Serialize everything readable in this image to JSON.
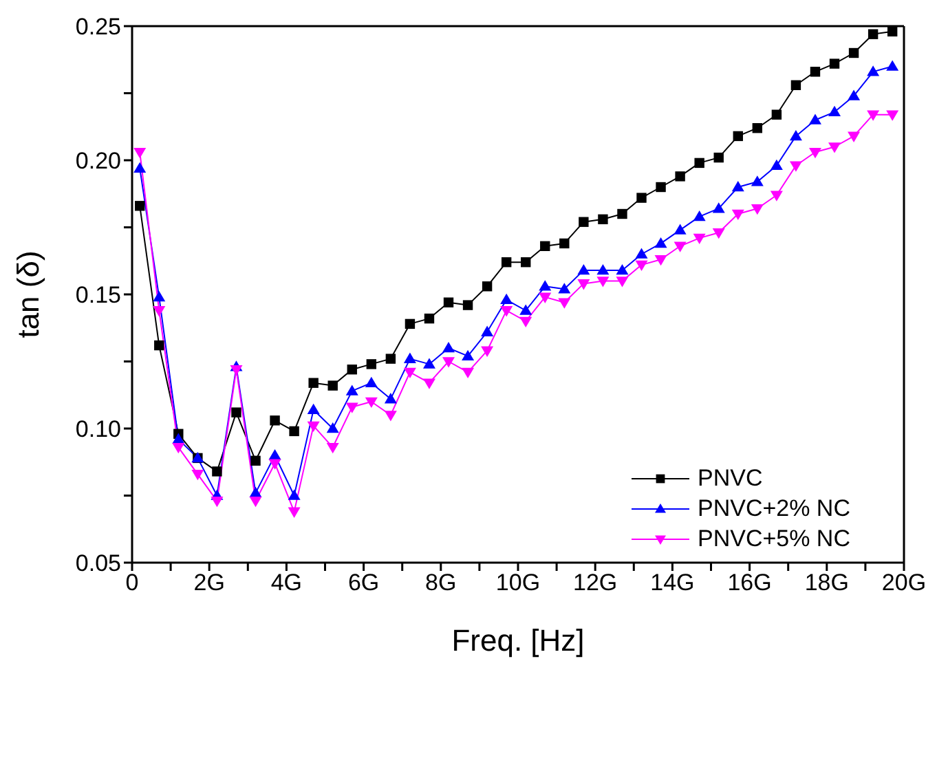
{
  "chart_data": {
    "type": "line",
    "xlabel": "Freq. [Hz]",
    "ylabel": "tan (δ)",
    "x": [
      0.2,
      0.7,
      1.2,
      1.7,
      2.2,
      2.7,
      3.2,
      3.7,
      4.2,
      4.7,
      5.2,
      5.7,
      6.2,
      6.7,
      7.2,
      7.7,
      8.2,
      8.7,
      9.2,
      9.7,
      10.2,
      10.7,
      11.2,
      11.7,
      12.2,
      12.7,
      13.2,
      13.7,
      14.2,
      14.7,
      15.2,
      15.7,
      16.2,
      16.7,
      17.2,
      17.7,
      18.2,
      18.7,
      19.2,
      19.7
    ],
    "series": [
      {
        "name": "PNVC",
        "color": "#000000",
        "marker": "square",
        "values": [
          0.183,
          0.131,
          0.098,
          0.089,
          0.084,
          0.106,
          0.088,
          0.103,
          0.099,
          0.117,
          0.116,
          0.122,
          0.124,
          0.126,
          0.139,
          0.141,
          0.147,
          0.146,
          0.153,
          0.162,
          0.162,
          0.168,
          0.169,
          0.177,
          0.178,
          0.18,
          0.186,
          0.19,
          0.194,
          0.199,
          0.201,
          0.209,
          0.212,
          0.217,
          0.228,
          0.233,
          0.236,
          0.24,
          0.247,
          0.248
        ]
      },
      {
        "name": "PNVC+2% NC",
        "color": "#0000ff",
        "marker": "triangle",
        "values": [
          0.197,
          0.149,
          0.096,
          0.089,
          0.075,
          0.123,
          0.076,
          0.09,
          0.075,
          0.107,
          0.1,
          0.114,
          0.117,
          0.111,
          0.126,
          0.124,
          0.13,
          0.127,
          0.136,
          0.148,
          0.144,
          0.153,
          0.152,
          0.159,
          0.159,
          0.159,
          0.165,
          0.169,
          0.174,
          0.179,
          0.182,
          0.19,
          0.192,
          0.198,
          0.209,
          0.215,
          0.218,
          0.224,
          0.233,
          0.235
        ]
      },
      {
        "name": "PNVC+5% NC",
        "color": "#ff00ff",
        "marker": "triangle-down",
        "values": [
          0.203,
          0.144,
          0.093,
          0.083,
          0.073,
          0.122,
          0.073,
          0.087,
          0.069,
          0.101,
          0.093,
          0.108,
          0.11,
          0.105,
          0.121,
          0.117,
          0.125,
          0.121,
          0.129,
          0.144,
          0.14,
          0.149,
          0.147,
          0.154,
          0.155,
          0.155,
          0.161,
          0.163,
          0.168,
          0.171,
          0.173,
          0.18,
          0.182,
          0.187,
          0.198,
          0.203,
          0.205,
          0.209,
          0.217,
          0.217
        ]
      }
    ],
    "xlim": [
      0,
      20
    ],
    "xticks": [
      0,
      {
        "value": 1,
        "label": null
      },
      {
        "value": 2,
        "label": "2G"
      },
      {
        "value": 3,
        "label": null
      },
      {
        "value": 4,
        "label": "4G"
      },
      {
        "value": 5,
        "label": null
      },
      {
        "value": 6,
        "label": "6G"
      },
      {
        "value": 7,
        "label": null
      },
      {
        "value": 8,
        "label": "8G"
      },
      {
        "value": 9,
        "label": null
      },
      {
        "value": 10,
        "label": "10G"
      },
      {
        "value": 11,
        "label": null
      },
      {
        "value": 12,
        "label": "12G"
      },
      {
        "value": 13,
        "label": null
      },
      {
        "value": 14,
        "label": "14G"
      },
      {
        "value": 15,
        "label": null
      },
      {
        "value": 16,
        "label": "16G"
      },
      {
        "value": 17,
        "label": null
      },
      {
        "value": 18,
        "label": "18G"
      },
      {
        "value": 19,
        "label": null
      },
      {
        "value": 20,
        "label": "20G"
      }
    ],
    "ylim": [
      0.05,
      0.25
    ],
    "yticks": [
      {
        "value": 0.05,
        "label": "0.05"
      },
      {
        "value": 0.075,
        "label": null
      },
      {
        "value": 0.1,
        "label": "0.10"
      },
      {
        "value": 0.125,
        "label": null
      },
      {
        "value": 0.15,
        "label": "0.15"
      },
      {
        "value": 0.175,
        "label": null
      },
      {
        "value": 0.2,
        "label": "0.20"
      },
      {
        "value": 0.225,
        "label": null
      },
      {
        "value": 0.25,
        "label": "0.25"
      }
    ],
    "grid": false,
    "legend": "bottom right",
    "line_style": "solid"
  }
}
